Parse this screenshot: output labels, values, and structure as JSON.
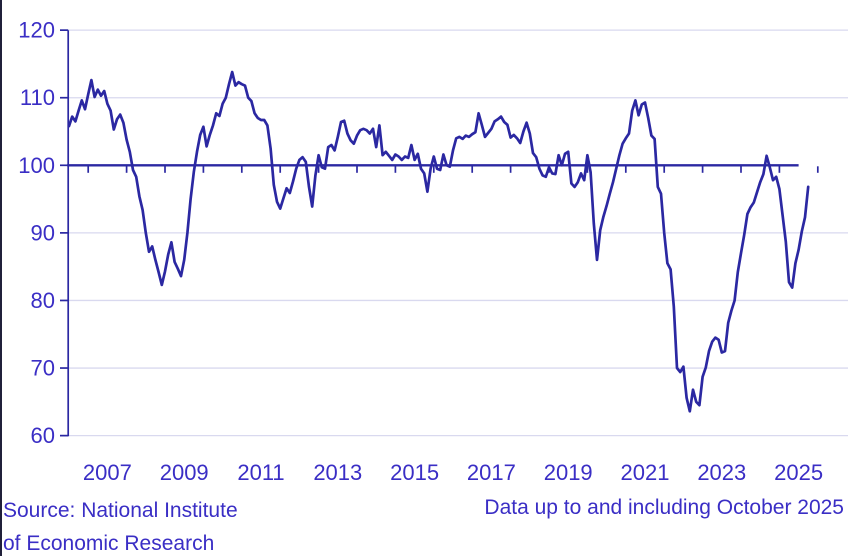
{
  "chart_data": {
    "type": "line",
    "title": "",
    "frequency": "monthly",
    "x_start": "2006-07",
    "x_end": "2025-10",
    "x_tick_years": [
      "2007",
      "2009",
      "2011",
      "2013",
      "2015",
      "2017",
      "2019",
      "2021",
      "2023",
      "2025"
    ],
    "y_ticks": [
      60,
      70,
      80,
      90,
      100,
      110,
      120
    ],
    "ylim": [
      60,
      120
    ],
    "baseline": 100,
    "grid": true,
    "legend_position": "none",
    "values": [
      105.8,
      107.2,
      106.5,
      108.1,
      109.6,
      108.3,
      110.5,
      112.6,
      110.1,
      111.2,
      110.3,
      111.0,
      109.1,
      108.1,
      105.3,
      106.8,
      107.5,
      106.3,
      103.8,
      102.0,
      99.3,
      98.3,
      95.4,
      93.4,
      90.0,
      87.2,
      88.0,
      86.0,
      84.2,
      82.3,
      84.3,
      86.8,
      88.6,
      85.7,
      84.7,
      83.6,
      86.0,
      90.0,
      95.0,
      99.0,
      102.0,
      104.5,
      105.7,
      102.8,
      104.5,
      105.9,
      107.7,
      107.3,
      109.1,
      110.0,
      112.0,
      113.8,
      111.8,
      112.3,
      112.0,
      111.8,
      110.0,
      109.5,
      107.7,
      107.0,
      106.7,
      106.7,
      105.9,
      102.5,
      97.1,
      94.6,
      93.6,
      95.1,
      96.6,
      95.9,
      97.6,
      99.5,
      100.8,
      101.2,
      100.5,
      96.8,
      93.9,
      98.5,
      101.5,
      99.7,
      99.5,
      102.7,
      103.0,
      102.2,
      104.2,
      106.4,
      106.6,
      104.7,
      103.7,
      103.2,
      104.4,
      105.2,
      105.4,
      105.2,
      104.7,
      105.4,
      102.7,
      105.9,
      101.5,
      102.0,
      101.4,
      100.8,
      101.6,
      101.3,
      100.8,
      101.3,
      101.1,
      103.0,
      100.8,
      101.7,
      99.5,
      98.8,
      96.1,
      99.5,
      101.3,
      99.5,
      99.3,
      101.6,
      100.0,
      99.8,
      102.2,
      104.0,
      104.2,
      103.9,
      104.4,
      104.2,
      104.6,
      104.9,
      107.7,
      106.0,
      104.2,
      104.8,
      105.4,
      106.5,
      106.8,
      107.2,
      106.4,
      106.0,
      104.1,
      104.5,
      104.0,
      103.3,
      105.0,
      106.3,
      104.7,
      101.8,
      101.2,
      99.5,
      98.5,
      98.3,
      99.7,
      98.8,
      98.7,
      101.5,
      100.0,
      101.7,
      102.0,
      97.3,
      96.8,
      97.5,
      98.8,
      97.8,
      101.5,
      99.0,
      91.4,
      86.0,
      90.4,
      92.4,
      94.0,
      95.8,
      97.5,
      99.5,
      101.5,
      103.2,
      104.0,
      104.7,
      108.1,
      109.6,
      107.4,
      109.0,
      109.3,
      107.0,
      104.4,
      103.9,
      96.8,
      95.8,
      90.0,
      85.5,
      84.6,
      79.1,
      70.0,
      69.4,
      70.2,
      65.6,
      63.6,
      66.8,
      65.0,
      64.5,
      68.7,
      70.1,
      72.5,
      73.9,
      74.5,
      74.2,
      72.3,
      72.5,
      76.7,
      78.5,
      80.0,
      84.2,
      87.0,
      89.7,
      92.8,
      93.8,
      94.5,
      96.0,
      97.5,
      98.7,
      101.4,
      99.7,
      97.8,
      98.3,
      96.5,
      92.6,
      88.7,
      82.7,
      81.9,
      85.5,
      87.5,
      90.2,
      92.3,
      96.8
    ]
  },
  "colors": {
    "line": "#2b28a2",
    "axis": "#2b28a2",
    "baseline": "#2b28a2",
    "grid": "#d9d9ef",
    "labels": "#3a2ec5",
    "edge": "#20203a",
    "background": "#ffffff"
  },
  "footer": {
    "source_line1": "Source: National Institute",
    "source_line2": "of Economic Research",
    "data_note": "Data up to and including October 2025"
  }
}
